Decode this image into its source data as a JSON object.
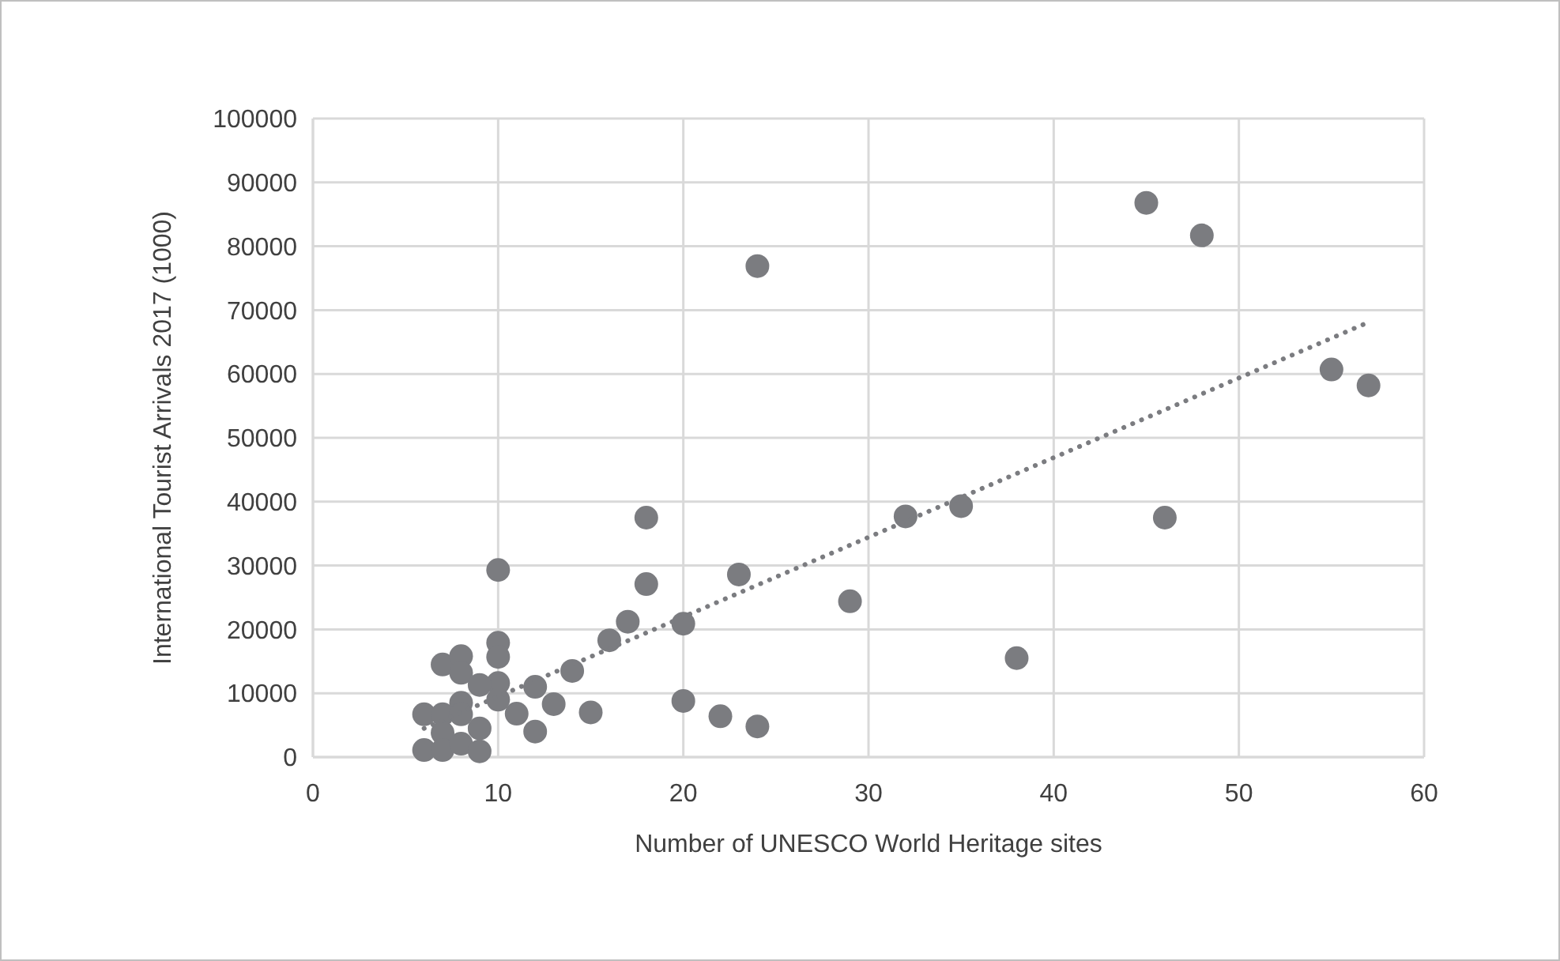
{
  "chart_data": {
    "type": "scatter",
    "xlabel": "Number of UNESCO World Heritage sites",
    "ylabel": "International Tourist Arrivals 2017 (1000)",
    "xlim": [
      0,
      60
    ],
    "xticks": [
      0,
      10,
      20,
      30,
      40,
      50,
      60
    ],
    "ylim": [
      0,
      100000
    ],
    "yticks": [
      0,
      10000,
      20000,
      30000,
      40000,
      50000,
      60000,
      70000,
      80000,
      90000,
      100000
    ],
    "grid": true,
    "series": [
      {
        "color": "#7b7c80",
        "marker": "circle",
        "x": [
          45,
          48,
          24,
          55,
          57,
          18,
          18,
          23,
          20,
          29,
          32,
          35,
          46,
          38,
          10,
          17,
          16,
          14,
          12,
          10,
          10,
          10,
          10,
          13,
          11,
          15,
          12,
          20,
          22,
          24,
          7,
          8,
          8,
          9,
          8,
          6,
          7,
          8,
          9,
          7,
          6,
          7,
          8,
          9
        ],
        "values": [
          86800,
          81700,
          76900,
          60700,
          58200,
          37500,
          27100,
          28600,
          20900,
          24400,
          37700,
          39300,
          37500,
          15500,
          29300,
          21200,
          18300,
          13500,
          11000,
          17900,
          15700,
          11600,
          9000,
          8300,
          6800,
          7000,
          4000,
          8800,
          6400,
          4800,
          14500,
          15800,
          13200,
          11300,
          8500,
          6700,
          6700,
          6700,
          4500,
          3800,
          1100,
          1100,
          2100,
          900
        ]
      },
      {
        "type": "line",
        "color": "#7b7c80",
        "line_style": "dotted",
        "marker": "none",
        "x": [
          6,
          57
        ],
        "values": [
          4500,
          68100
        ]
      }
    ]
  }
}
